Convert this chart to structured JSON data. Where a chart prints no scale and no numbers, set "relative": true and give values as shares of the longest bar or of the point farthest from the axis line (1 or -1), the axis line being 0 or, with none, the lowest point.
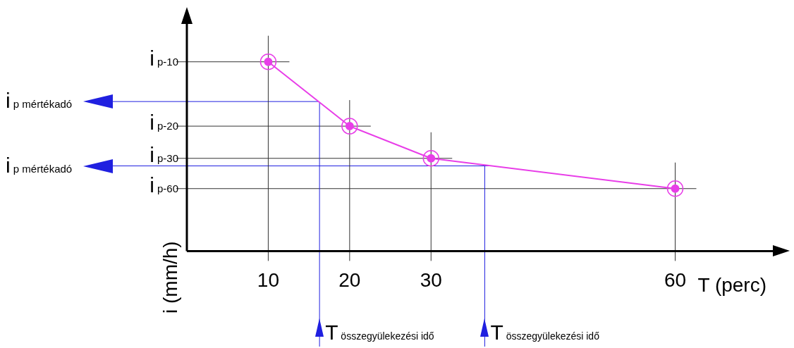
{
  "chart_data": {
    "type": "line",
    "xlabel": "T (perc)",
    "ylabel": "i (mm/h)",
    "relative": true,
    "xlim": [
      0,
      72
    ],
    "xticks": [
      10,
      20,
      30,
      60
    ],
    "marker": "circle",
    "series": [
      {
        "color": "#e83ee8",
        "x": [
          10,
          20,
          30,
          60
        ],
        "values": [
          1,
          0.66,
          0.49,
          0.33
        ]
      }
    ],
    "ref_lines": [
      {
        "axis": "y",
        "value": 1,
        "label": "i$_{p-10}$",
        "color": "#333333"
      },
      {
        "axis": "y",
        "value": 0.66,
        "label": "i$_{p-20}$",
        "color": "#333333"
      },
      {
        "axis": "y",
        "value": 0.49,
        "label": "i$_{p-30}$",
        "color": "#333333"
      },
      {
        "axis": "y",
        "value": 0.33,
        "label": "i$_{p-60}$",
        "color": "#333333"
      },
      {
        "axis": "y",
        "value": 0.79,
        "label": "i$_{p mértékadó}$",
        "color": "#2020e0"
      },
      {
        "axis": "y",
        "value": 0.45,
        "label": "i$_{p mértékadó}$",
        "color": "#2020e0"
      },
      {
        "axis": "x",
        "value": 10,
        "color": "#333333"
      },
      {
        "axis": "x",
        "value": 20,
        "color": "#333333"
      },
      {
        "axis": "x",
        "value": 30,
        "color": "#333333"
      },
      {
        "axis": "x",
        "value": 60,
        "color": "#333333"
      },
      {
        "axis": "x",
        "value": 16.3,
        "label": "T$_{összegyülekezési idő}$",
        "color": "#2020e0"
      },
      {
        "axis": "x",
        "value": 36.6,
        "label": "T$_{összegyülekezési idő}$",
        "color": "#2020e0"
      }
    ]
  }
}
